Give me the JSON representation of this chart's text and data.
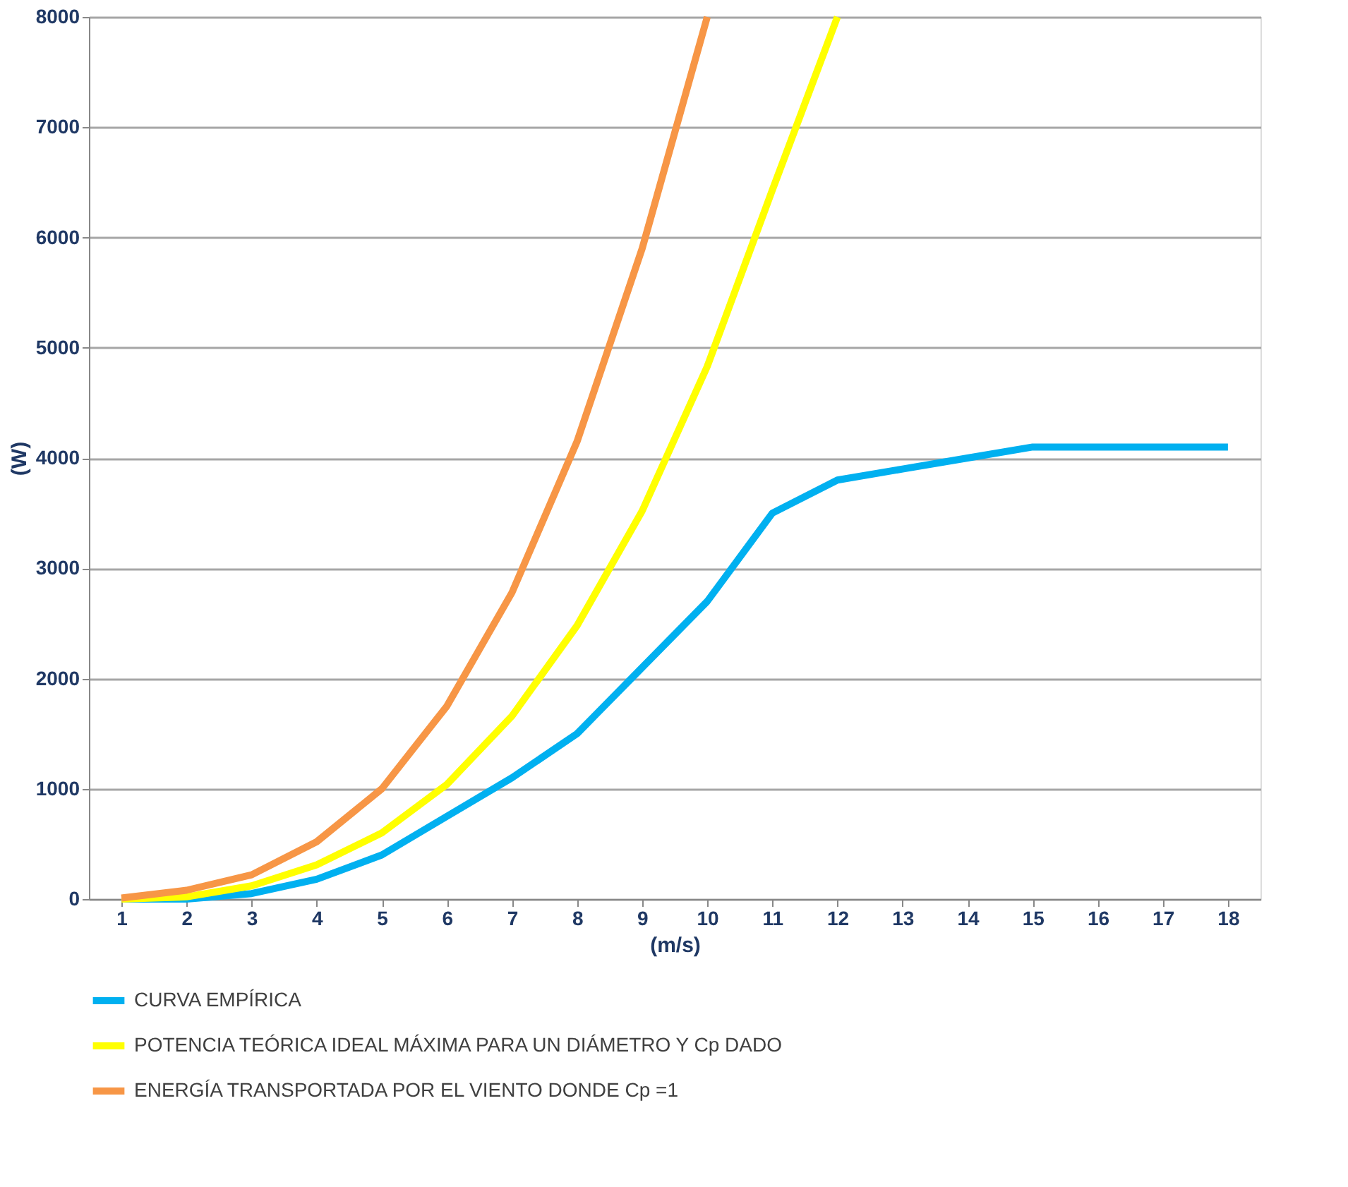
{
  "chart_data": {
    "type": "line",
    "xlabel": "(m/s)",
    "ylabel": "(W)",
    "x": [
      1,
      2,
      3,
      4,
      5,
      6,
      7,
      8,
      9,
      10,
      11,
      12,
      13,
      14,
      15,
      16,
      17,
      18
    ],
    "series": [
      {
        "name": "CURVA EMPÍRICA",
        "color": "#00b0f0",
        "values": [
          0,
          0,
          50,
          180,
          400,
          750,
          1100,
          1500,
          2100,
          2700,
          3500,
          3800,
          3900,
          4000,
          4100,
          4100,
          4100,
          4100
        ]
      },
      {
        "name": "POTENCIA TEÓRICA IDEAL MÁXIMA PARA UN DIÁMETRO Y Cp DADO",
        "color": "#ffff00",
        "values": [
          0,
          20,
          120,
          310,
          600,
          1040,
          1660,
          2480,
          3520,
          4830,
          6430,
          8000,
          null,
          null,
          null,
          null,
          null,
          null
        ]
      },
      {
        "name": "ENERGÍA TRANSPORTADA POR EL VIENTO DONDE Cp =1",
        "color": "#f79646",
        "values": [
          10,
          80,
          220,
          520,
          1000,
          1750,
          2780,
          4150,
          5900,
          8000,
          null,
          null,
          null,
          null,
          null,
          null,
          null,
          null
        ]
      }
    ],
    "xlim": [
      0.5,
      18.5
    ],
    "xticks": [
      1,
      2,
      3,
      4,
      5,
      6,
      7,
      8,
      9,
      10,
      11,
      12,
      13,
      14,
      15,
      16,
      17,
      18
    ],
    "ylim": [
      0,
      8000
    ],
    "yticks": [
      0,
      1000,
      2000,
      3000,
      4000,
      5000,
      6000,
      7000,
      8000
    ],
    "grid": "y",
    "legend": "bottom",
    "marker": "none",
    "line_style": "solid"
  }
}
